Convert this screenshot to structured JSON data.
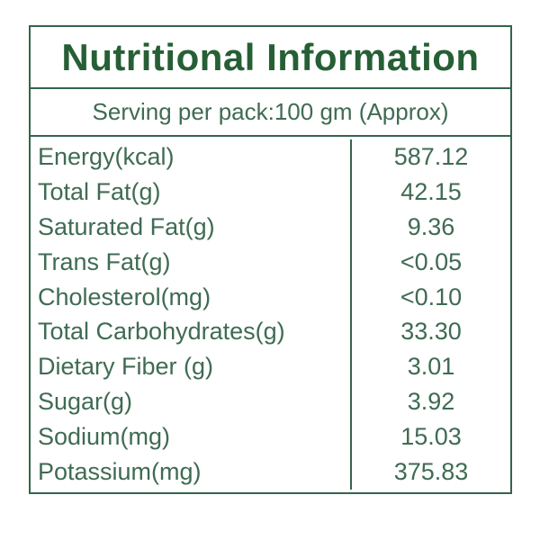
{
  "title": "Nutritional Information",
  "serving_line": "Serving per pack:100 gm (Approx)",
  "colors": {
    "text_title": "#265f35",
    "text_body": "#3f6b53",
    "border": "#35644c",
    "background": "#ffffff"
  },
  "table": {
    "rows": [
      {
        "label": "Energy(kcal)",
        "value": "587.12"
      },
      {
        "label": "Total Fat(g)",
        "value": "42.15"
      },
      {
        "label": "Saturated Fat(g)",
        "value": "9.36"
      },
      {
        "label": "Trans Fat(g)",
        "value": "<0.05"
      },
      {
        "label": "Cholesterol(mg)",
        "value": "<0.10"
      },
      {
        "label": "Total Carbohydrates(g)",
        "value": "33.30"
      },
      {
        "label": "Dietary Fiber (g)",
        "value": "3.01"
      },
      {
        "label": "Sugar(g)",
        "value": "3.92"
      },
      {
        "label": "Sodium(mg)",
        "value": "15.03"
      },
      {
        "label": "Potassium(mg)",
        "value": "375.83"
      }
    ]
  }
}
